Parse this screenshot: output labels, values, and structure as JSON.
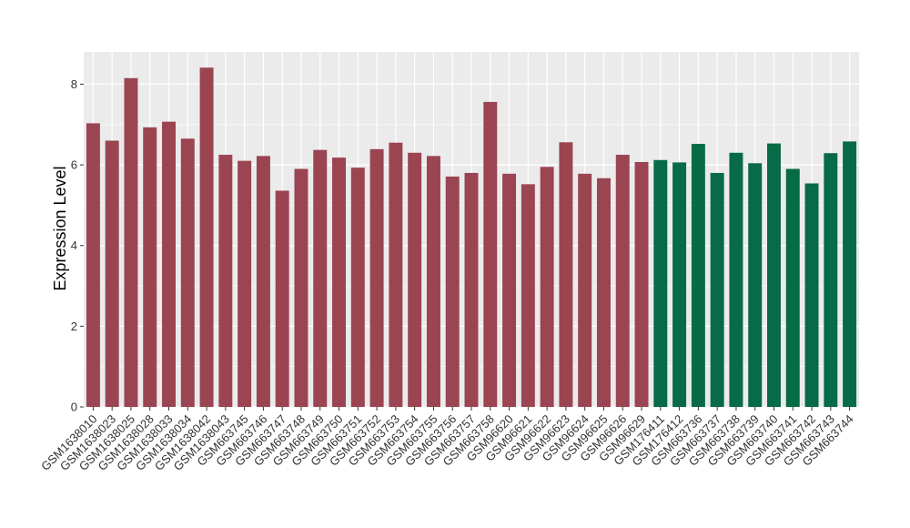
{
  "chart_data": {
    "type": "bar",
    "title": "",
    "xlabel": "",
    "ylabel": "Expression Level",
    "ylim": [
      0,
      8.8
    ],
    "yticks": [
      0,
      2,
      4,
      6,
      8
    ],
    "grid": true,
    "legend": "none",
    "categories": [
      "GSM1638010",
      "GSM1638023",
      "GSM1638025",
      "GSM1638028",
      "GSM1638033",
      "GSM1638034",
      "GSM1638042",
      "GSM1638043",
      "GSM663745",
      "GSM663746",
      "GSM663747",
      "GSM663748",
      "GSM663749",
      "GSM663750",
      "GSM663751",
      "GSM663752",
      "GSM663753",
      "GSM663754",
      "GSM663755",
      "GSM663756",
      "GSM663757",
      "GSM663758",
      "GSM96620",
      "GSM96621",
      "GSM96622",
      "GSM96623",
      "GSM96624",
      "GSM96625",
      "GSM96626",
      "GSM96629",
      "GSM176411",
      "GSM176412",
      "GSM663736",
      "GSM663737",
      "GSM663738",
      "GSM663739",
      "GSM663740",
      "GSM663741",
      "GSM663742",
      "GSM663743",
      "GSM663744"
    ],
    "values": [
      7.03,
      6.6,
      8.15,
      6.93,
      7.07,
      6.65,
      8.41,
      6.25,
      6.1,
      6.22,
      5.36,
      5.9,
      6.37,
      6.18,
      5.93,
      6.39,
      6.55,
      6.3,
      6.22,
      5.71,
      5.8,
      7.56,
      5.78,
      5.52,
      5.95,
      6.56,
      5.78,
      5.67,
      6.25,
      6.07,
      6.12,
      6.06,
      6.52,
      5.8,
      6.3,
      6.04,
      6.53,
      5.9,
      5.54,
      6.29,
      6.58
    ],
    "groups": [
      0,
      0,
      0,
      0,
      0,
      0,
      0,
      0,
      0,
      0,
      0,
      0,
      0,
      0,
      0,
      0,
      0,
      0,
      0,
      0,
      0,
      0,
      0,
      0,
      0,
      0,
      0,
      0,
      0,
      0,
      1,
      1,
      1,
      1,
      1,
      1,
      1,
      1,
      1,
      1,
      1
    ],
    "group_colors": [
      "#9b4452",
      "#066b46"
    ],
    "panel_color": "#ebebeb",
    "grid_color": "#ffffff"
  }
}
